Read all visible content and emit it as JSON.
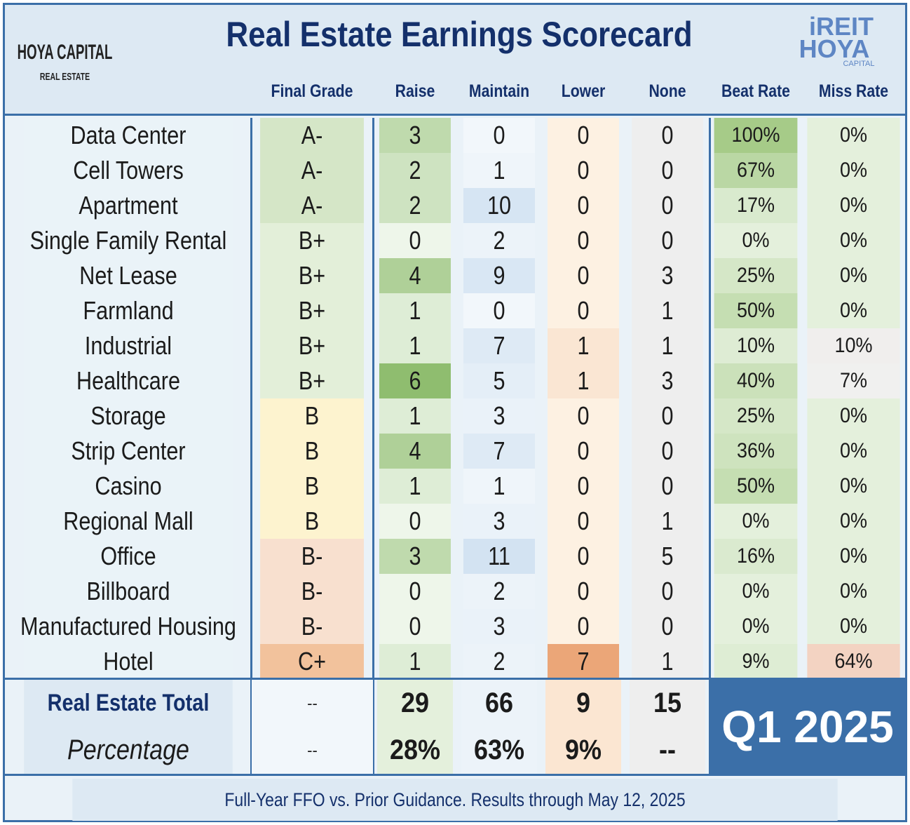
{
  "header": {
    "title": "Real Estate Earnings Scorecard",
    "logo_left": {
      "name": "HOYA CAPITAL",
      "sub": "REAL ESTATE"
    },
    "logo_right": {
      "top": "iREIT",
      "name": "HOYA",
      "sub": "CAPITAL"
    }
  },
  "table": {
    "columns": [
      "Final Grade",
      "Raise",
      "Maintain",
      "Lower",
      "None",
      "Beat Rate",
      "Miss Rate"
    ],
    "rows": [
      {
        "label": "Data Center",
        "grade": "A-",
        "grade_color": "#d5e6c7",
        "raise": 3,
        "maintain": 0,
        "lower": 0,
        "none": 0,
        "beat": "100%",
        "miss": "0%"
      },
      {
        "label": "Cell Towers",
        "grade": "A-",
        "grade_color": "#d5e6c7",
        "raise": 2,
        "maintain": 1,
        "lower": 0,
        "none": 0,
        "beat": "67%",
        "miss": "0%"
      },
      {
        "label": "Apartment",
        "grade": "A-",
        "grade_color": "#d5e6c7",
        "raise": 2,
        "maintain": 10,
        "lower": 0,
        "none": 0,
        "beat": "17%",
        "miss": "0%"
      },
      {
        "label": "Single Family Rental",
        "grade": "B+",
        "grade_color": "#e3efd9",
        "raise": 0,
        "maintain": 2,
        "lower": 0,
        "none": 0,
        "beat": "0%",
        "miss": "0%"
      },
      {
        "label": "Net Lease",
        "grade": "B+",
        "grade_color": "#e3efd9",
        "raise": 4,
        "maintain": 9,
        "lower": 0,
        "none": 3,
        "beat": "25%",
        "miss": "0%"
      },
      {
        "label": "Farmland",
        "grade": "B+",
        "grade_color": "#e3efd9",
        "raise": 1,
        "maintain": 0,
        "lower": 0,
        "none": 1,
        "beat": "50%",
        "miss": "0%"
      },
      {
        "label": "Industrial",
        "grade": "B+",
        "grade_color": "#e3efd9",
        "raise": 1,
        "maintain": 7,
        "lower": 1,
        "none": 1,
        "beat": "10%",
        "miss": "10%"
      },
      {
        "label": "Healthcare",
        "grade": "B+",
        "grade_color": "#e3efd9",
        "raise": 6,
        "maintain": 5,
        "lower": 1,
        "none": 3,
        "beat": "40%",
        "miss": "7%"
      },
      {
        "label": "Storage",
        "grade": "B",
        "grade_color": "#fdf3cf",
        "raise": 1,
        "maintain": 3,
        "lower": 0,
        "none": 0,
        "beat": "25%",
        "miss": "0%"
      },
      {
        "label": "Strip Center",
        "grade": "B",
        "grade_color": "#fdf3cf",
        "raise": 4,
        "maintain": 7,
        "lower": 0,
        "none": 0,
        "beat": "36%",
        "miss": "0%"
      },
      {
        "label": "Casino",
        "grade": "B",
        "grade_color": "#fdf3cf",
        "raise": 1,
        "maintain": 1,
        "lower": 0,
        "none": 0,
        "beat": "50%",
        "miss": "0%"
      },
      {
        "label": "Regional Mall",
        "grade": "B",
        "grade_color": "#fdf3cf",
        "raise": 0,
        "maintain": 3,
        "lower": 0,
        "none": 1,
        "beat": "0%",
        "miss": "0%"
      },
      {
        "label": "Office",
        "grade": "B-",
        "grade_color": "#f8e0cf",
        "raise": 3,
        "maintain": 11,
        "lower": 0,
        "none": 5,
        "beat": "16%",
        "miss": "0%"
      },
      {
        "label": "Billboard",
        "grade": "B-",
        "grade_color": "#f8e0cf",
        "raise": 0,
        "maintain": 2,
        "lower": 0,
        "none": 0,
        "beat": "0%",
        "miss": "0%"
      },
      {
        "label": "Manufactured Housing",
        "grade": "B-",
        "grade_color": "#f8e0cf",
        "raise": 0,
        "maintain": 3,
        "lower": 0,
        "none": 0,
        "beat": "0%",
        "miss": "0%"
      },
      {
        "label": "Hotel",
        "grade": "C+",
        "grade_color": "#f2c29c",
        "raise": 1,
        "maintain": 2,
        "lower": 7,
        "none": 1,
        "beat": "9%",
        "miss": "64%"
      }
    ],
    "total": {
      "label": "Real Estate Total",
      "grade": "--",
      "raise": 29,
      "maintain": 66,
      "lower": 9,
      "none": 15
    },
    "percentage": {
      "label": "Percentage",
      "grade": "--",
      "raise": "28%",
      "maintain": "63%",
      "lower": "9%",
      "none": "--"
    },
    "badge": "Q1 2025"
  },
  "footer": "Full-Year FFO vs. Prior Guidance. Results through May 12, 2025"
}
